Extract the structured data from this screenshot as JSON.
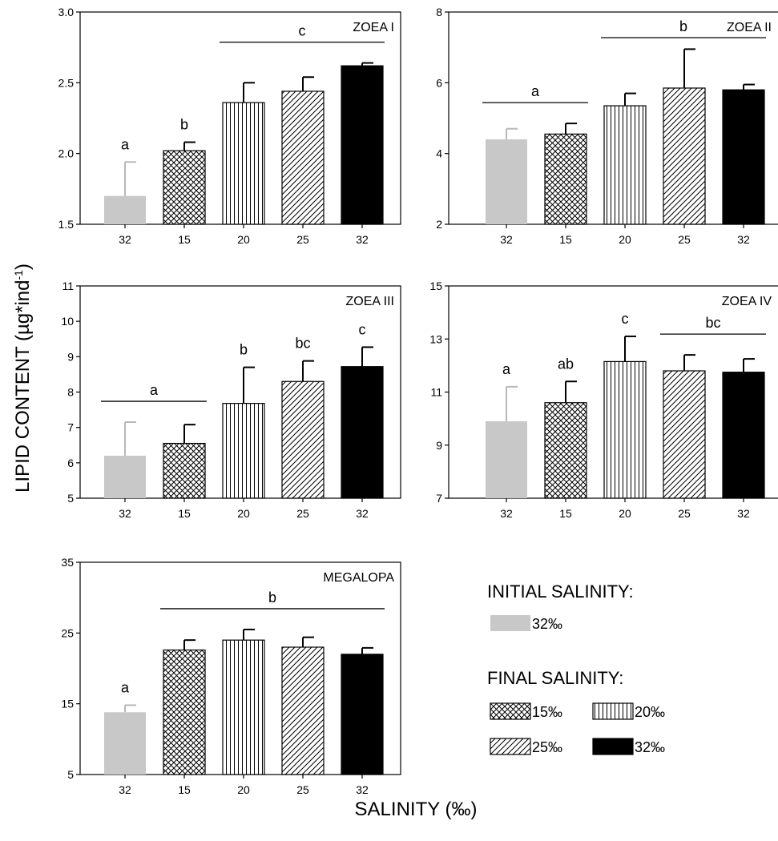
{
  "figure": {
    "ylabel": "LIPID CONTENT (µg*ind",
    "ylabel_sup": "-1",
    "ylabel_close": ")",
    "xlabel": "SALINITY (‰)"
  },
  "legend": {
    "initial_title": "INITIAL SALINITY:",
    "final_title": "FINAL SALINITY:",
    "items": [
      {
        "pattern": "gray",
        "label": "32‰"
      },
      {
        "pattern": "cross",
        "label": "15‰"
      },
      {
        "pattern": "vertical",
        "label": "20‰"
      },
      {
        "pattern": "diagonal",
        "label": "25‰"
      },
      {
        "pattern": "black",
        "label": "32‰"
      }
    ]
  },
  "colors": {
    "initial": "#c8c8c8",
    "black": "#000000",
    "error_bar_initial": "#b8b8b8"
  },
  "chart_data": [
    {
      "type": "bar",
      "title": "ZOEA I",
      "categories": [
        "32",
        "15",
        "20",
        "25",
        "32"
      ],
      "patterns": [
        "gray",
        "cross",
        "vertical",
        "diagonal",
        "black"
      ],
      "values": [
        1.7,
        2.02,
        2.36,
        2.44,
        2.62
      ],
      "errors": [
        0.24,
        0.06,
        0.14,
        0.1,
        0.02
      ],
      "ylim": [
        1.5,
        3.0
      ],
      "yticks": [
        "1.5",
        "2.0",
        "2.5",
        "3.0"
      ],
      "letters": [
        "a",
        "b",
        "",
        "",
        ""
      ],
      "groups": [
        {
          "label": "c",
          "from": 2,
          "to": 4
        }
      ]
    },
    {
      "type": "bar",
      "title": "ZOEA II",
      "categories": [
        "32",
        "15",
        "20",
        "25",
        "32"
      ],
      "patterns": [
        "gray",
        "cross",
        "vertical",
        "diagonal",
        "black"
      ],
      "values": [
        4.4,
        4.55,
        5.35,
        5.85,
        5.8
      ],
      "errors": [
        0.3,
        0.3,
        0.35,
        1.1,
        0.15
      ],
      "ylim": [
        2,
        8
      ],
      "yticks": [
        "2",
        "4",
        "6",
        "8"
      ],
      "letters": [
        "",
        "",
        "",
        "",
        ""
      ],
      "groups": [
        {
          "label": "a",
          "from": 0,
          "to": 1
        },
        {
          "label": "b",
          "from": 2,
          "to": 4
        }
      ]
    },
    {
      "type": "bar",
      "title": "ZOEA III",
      "categories": [
        "32",
        "15",
        "20",
        "25",
        "32"
      ],
      "patterns": [
        "gray",
        "cross",
        "vertical",
        "diagonal",
        "black"
      ],
      "values": [
        6.2,
        6.55,
        7.68,
        8.3,
        8.72
      ],
      "errors": [
        0.95,
        0.53,
        1.02,
        0.58,
        0.55
      ],
      "ylim": [
        5,
        11
      ],
      "yticks": [
        "5",
        "6",
        "7",
        "8",
        "9",
        "10",
        "11"
      ],
      "letters": [
        "",
        "",
        "b",
        "bc",
        "c"
      ],
      "groups": [
        {
          "label": "a",
          "from": 0,
          "to": 1
        }
      ]
    },
    {
      "type": "bar",
      "title": "ZOEA IV",
      "categories": [
        "32",
        "15",
        "20",
        "25",
        "32"
      ],
      "patterns": [
        "gray",
        "cross",
        "vertical",
        "diagonal",
        "black"
      ],
      "values": [
        9.9,
        10.6,
        12.15,
        11.8,
        11.75
      ],
      "errors": [
        1.3,
        0.8,
        0.95,
        0.6,
        0.5
      ],
      "ylim": [
        7,
        15
      ],
      "yticks": [
        "7",
        "9",
        "11",
        "13",
        "15"
      ],
      "letters": [
        "a",
        "ab",
        "c",
        "",
        ""
      ],
      "groups": [
        {
          "label": "bc",
          "from": 3,
          "to": 4
        }
      ]
    },
    {
      "type": "bar",
      "title": "MEGALOPA",
      "categories": [
        "32",
        "15",
        "20",
        "25",
        "32"
      ],
      "patterns": [
        "gray",
        "cross",
        "vertical",
        "diagonal",
        "black"
      ],
      "values": [
        13.8,
        22.6,
        24.0,
        23.0,
        22.0
      ],
      "errors": [
        1.0,
        1.4,
        1.5,
        1.4,
        0.9
      ],
      "ylim": [
        5,
        35
      ],
      "yticks": [
        "5",
        "15",
        "25",
        "35"
      ],
      "letters": [
        "a",
        "",
        "",
        "",
        ""
      ],
      "groups": [
        {
          "label": "b",
          "from": 1,
          "to": 4
        }
      ]
    }
  ]
}
